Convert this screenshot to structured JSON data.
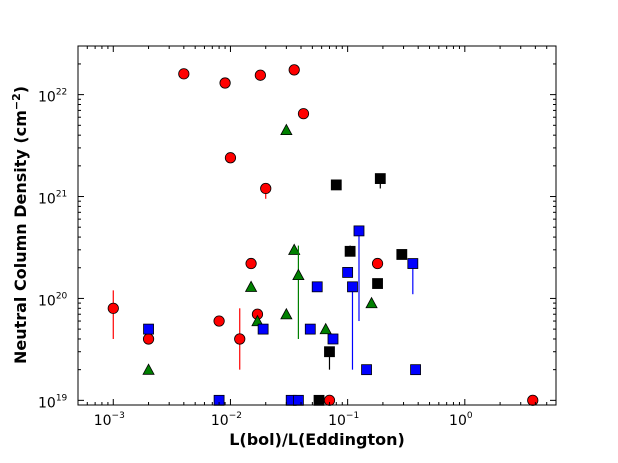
{
  "chart_data": {
    "type": "scatter",
    "title": "",
    "xlabel": "L(bol)/L(Eddington)",
    "ylabel": "Neutral Column Density (cm",
    "ylabel_exponent": "−2",
    "ylabel_suffix": ")",
    "x_scale": "log",
    "y_scale": "log",
    "xlim": [
      0.0005,
      6
    ],
    "ylim": [
      9e+18,
      3e+22
    ],
    "grid": false,
    "legend": "none",
    "x_ticks": [
      {
        "value": 0.001,
        "base": "10",
        "exp": "−3"
      },
      {
        "value": 0.01,
        "base": "10",
        "exp": "−2"
      },
      {
        "value": 0.1,
        "base": "10",
        "exp": "−1"
      },
      {
        "value": 1,
        "base": "10",
        "exp": "0"
      }
    ],
    "y_ticks": [
      {
        "value": 1e+19,
        "base": "10",
        "exp": "19"
      },
      {
        "value": 1e+20,
        "base": "10",
        "exp": "20"
      },
      {
        "value": 1e+21,
        "base": "10",
        "exp": "21"
      },
      {
        "value": 1e+22,
        "base": "10",
        "exp": "22"
      }
    ],
    "series": [
      {
        "marker": "circle",
        "color": "#ff0000",
        "errorbar_color": "#ff0000",
        "points": [
          {
            "x": 0.001,
            "y": 8e+19,
            "ylo": 4e+19,
            "yhi": 1.2e+20
          },
          {
            "x": 0.002,
            "y": 4e+19
          },
          {
            "x": 0.004,
            "y": 1.6e+22
          },
          {
            "x": 0.008,
            "y": 6e+19
          },
          {
            "x": 0.009,
            "y": 1.3e+22
          },
          {
            "x": 0.01,
            "y": 2.4e+21
          },
          {
            "x": 0.012,
            "y": 4e+19,
            "ylo": 2e+19,
            "yhi": 8e+19
          },
          {
            "x": 0.015,
            "y": 2.2e+20
          },
          {
            "x": 0.017,
            "y": 7e+19
          },
          {
            "x": 0.018,
            "y": 1.55e+22
          },
          {
            "x": 0.02,
            "y": 1.2e+21,
            "ylo": 9.5e+20,
            "yhi": 1.2e+21
          },
          {
            "x": 0.035,
            "y": 1.75e+22
          },
          {
            "x": 0.042,
            "y": 6.5e+21
          },
          {
            "x": 0.07,
            "y": 1e+19
          },
          {
            "x": 0.18,
            "y": 2.2e+20
          },
          {
            "x": 3.8,
            "y": 1e+19
          }
        ]
      },
      {
        "marker": "triangle",
        "color": "#008000",
        "errorbar_color": "#008000",
        "points": [
          {
            "x": 0.002,
            "y": 2e+19
          },
          {
            "x": 0.015,
            "y": 1.3e+20
          },
          {
            "x": 0.017,
            "y": 6e+19
          },
          {
            "x": 0.03,
            "y": 4.5e+21
          },
          {
            "x": 0.03,
            "y": 7e+19
          },
          {
            "x": 0.035,
            "y": 3e+20
          },
          {
            "x": 0.038,
            "y": 1.7e+20,
            "ylo": 4e+19,
            "yhi": 3.3e+20
          },
          {
            "x": 0.065,
            "y": 5e+19
          },
          {
            "x": 0.16,
            "y": 9e+19
          }
        ]
      },
      {
        "marker": "square",
        "color": "#0000ff",
        "errorbar_color": "#0000ff",
        "points": [
          {
            "x": 0.002,
            "y": 5e+19
          },
          {
            "x": 0.008,
            "y": 1e+19
          },
          {
            "x": 0.019,
            "y": 5e+19
          },
          {
            "x": 0.033,
            "y": 1e+19
          },
          {
            "x": 0.038,
            "y": 1e+19
          },
          {
            "x": 0.048,
            "y": 5e+19
          },
          {
            "x": 0.055,
            "y": 1.3e+20
          },
          {
            "x": 0.075,
            "y": 4e+19
          },
          {
            "x": 0.1,
            "y": 1.8e+20
          },
          {
            "x": 0.11,
            "y": 1.3e+20,
            "ylo": 2e+19,
            "yhi": 1.3e+20
          },
          {
            "x": 0.125,
            "y": 4.6e+20,
            "ylo": 6e+19,
            "yhi": 4.6e+20
          },
          {
            "x": 0.145,
            "y": 2e+19
          },
          {
            "x": 0.36,
            "y": 2.2e+20,
            "ylo": 1.1e+20,
            "yhi": 2.2e+20
          },
          {
            "x": 0.38,
            "y": 2e+19
          }
        ]
      },
      {
        "marker": "square",
        "color": "#000000",
        "errorbar_color": "#000000",
        "points": [
          {
            "x": 0.057,
            "y": 1e+19
          },
          {
            "x": 0.07,
            "y": 3e+19,
            "ylo": 2e+19,
            "yhi": 3e+19
          },
          {
            "x": 0.08,
            "y": 1.3e+21
          },
          {
            "x": 0.105,
            "y": 2.9e+20,
            "ylo": 2.9e+20,
            "yhi": 3.3e+20
          },
          {
            "x": 0.18,
            "y": 1.4e+20
          },
          {
            "x": 0.19,
            "y": 1.5e+21,
            "ylo": 1.2e+21,
            "yhi": 1.5e+21
          },
          {
            "x": 0.29,
            "y": 2.7e+20,
            "ylo": 2.7e+20,
            "yhi": 3e+20
          }
        ]
      }
    ]
  }
}
